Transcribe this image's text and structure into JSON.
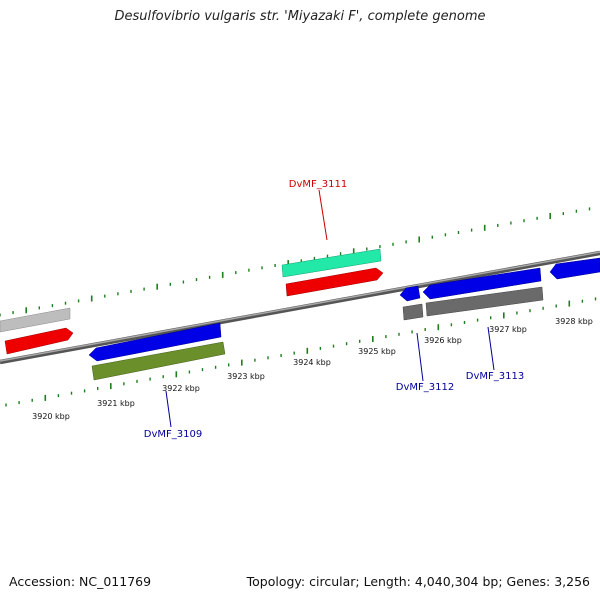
{
  "title": "Desulfovibrio vulgaris str. 'Miyazaki F', complete genome",
  "accession": "Accession: NC_011769",
  "summary": "Topology: circular; Length: 4,040,304 bp; Genes: 3,256",
  "colors": {
    "backbone": "#808080",
    "tick": "#1e7d1e",
    "cds": "#0000e6",
    "cds_highlight": "#ee0000",
    "rna": "#20e8a8",
    "gene_gray": "#b8b8b8",
    "gene_dark": "#686868",
    "gene_olive": "#6a8f2a",
    "label_blue": "#000099",
    "label_red": "#cc0000"
  },
  "ticks": [
    {
      "label": "3920 kbp"
    },
    {
      "label": "3921 kbp"
    },
    {
      "label": "3922 kbp"
    },
    {
      "label": "3923 kbp"
    },
    {
      "label": "3924 kbp"
    },
    {
      "label": "3925 kbp"
    },
    {
      "label": "3926 kbp"
    },
    {
      "label": "3927 kbp"
    },
    {
      "label": "3928 kbp"
    }
  ],
  "gene_labels": [
    {
      "id": "DvMF_3109",
      "color": "#000099"
    },
    {
      "id": "DvMF_3111",
      "color": "#cc0000"
    },
    {
      "id": "DvMF_3112",
      "color": "#000099"
    },
    {
      "id": "DvMF_3113",
      "color": "#000099"
    }
  ]
}
